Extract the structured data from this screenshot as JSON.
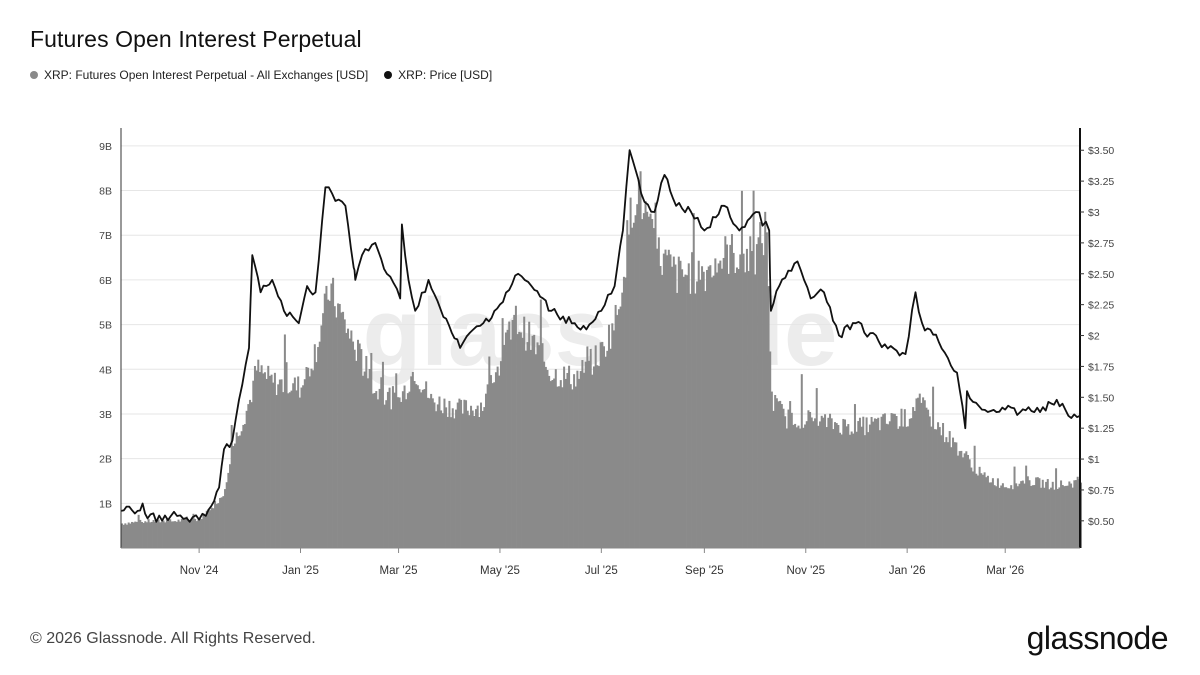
{
  "title": "Futures Open Interest Perpetual",
  "legend": [
    {
      "label": "XRP: Futures Open Interest Perpetual - All Exchanges [USD]",
      "color": "#8a8a8a"
    },
    {
      "label": "XRP: Price [USD]",
      "color": "#111111"
    }
  ],
  "footer": {
    "copyright": "© 2026 Glassnode. All Rights Reserved.",
    "brand": "glassnode"
  },
  "watermark": "glassnode",
  "chart_data": {
    "type": "area",
    "title": "Futures Open Interest Perpetual",
    "x_range": [
      "2024-09-15",
      "2026-04-15"
    ],
    "x_tick_labels": [
      "Nov '24",
      "Jan '25",
      "Mar '25",
      "May '25",
      "Jul '25",
      "Sep '25",
      "Nov '25",
      "Jan '26",
      "Mar '26"
    ],
    "x_tick_dates": [
      "2024-11-01",
      "2025-01-01",
      "2025-03-01",
      "2025-05-01",
      "2025-07-01",
      "2025-09-01",
      "2025-11-01",
      "2026-01-01",
      "2026-03-01"
    ],
    "left_axis": {
      "tick_labels": [
        "1B",
        "2B",
        "3B",
        "4B",
        "5B",
        "6B",
        "7B",
        "8B",
        "9B"
      ],
      "tick_values": [
        1,
        2,
        3,
        4,
        5,
        6,
        7,
        8,
        9
      ],
      "range": [
        0,
        9.4
      ],
      "unit": "B USD"
    },
    "right_axis": {
      "tick_labels": [
        "$0.50",
        "$0.75",
        "$1",
        "$1.25",
        "$1.50",
        "$1.75",
        "$2",
        "$2.25",
        "$2.50",
        "$2.75",
        "$3",
        "$3.25",
        "$3.50"
      ],
      "tick_values": [
        0.5,
        0.75,
        1,
        1.25,
        1.5,
        1.75,
        2,
        2.25,
        2.5,
        2.75,
        3,
        3.25,
        3.5
      ],
      "range": [
        0.28,
        3.68
      ]
    },
    "grid": true,
    "legend_position": "top-left",
    "series": [
      {
        "name": "XRP: Futures Open Interest Perpetual - All Exchanges [USD]",
        "kind": "bars",
        "color": "#8a8a8a",
        "x": [
          "2024-09-15",
          "2024-10-01",
          "2024-10-15",
          "2024-11-01",
          "2024-11-15",
          "2024-11-20",
          "2024-12-01",
          "2024-12-05",
          "2024-12-15",
          "2025-01-01",
          "2025-01-10",
          "2025-01-18",
          "2025-02-01",
          "2025-02-15",
          "2025-03-01",
          "2025-03-10",
          "2025-03-20",
          "2025-04-07",
          "2025-04-20",
          "2025-05-01",
          "2025-05-10",
          "2025-05-20",
          "2025-06-01",
          "2025-06-15",
          "2025-07-01",
          "2025-07-10",
          "2025-07-18",
          "2025-07-22",
          "2025-08-01",
          "2025-08-15",
          "2025-09-01",
          "2025-09-15",
          "2025-10-01",
          "2025-10-08",
          "2025-10-11",
          "2025-10-20",
          "2025-11-01",
          "2025-11-15",
          "2025-12-01",
          "2025-12-15",
          "2026-01-01",
          "2026-01-06",
          "2026-01-20",
          "2026-02-01",
          "2026-02-15",
          "2026-03-01",
          "2026-03-15",
          "2026-04-01",
          "2026-04-15"
        ],
        "values": [
          0.55,
          0.6,
          0.6,
          0.65,
          1.2,
          2.2,
          3.3,
          4.0,
          3.7,
          3.6,
          4.5,
          5.8,
          4.6,
          3.5,
          3.3,
          4.0,
          3.3,
          3.1,
          3.2,
          4.2,
          5.1,
          4.6,
          3.9,
          3.8,
          4.4,
          5.2,
          7.4,
          8.2,
          6.7,
          6.1,
          6.2,
          6.6,
          6.5,
          7.2,
          3.3,
          2.9,
          2.9,
          2.8,
          2.7,
          2.8,
          2.9,
          3.3,
          2.7,
          2.2,
          1.6,
          1.4,
          1.5,
          1.4,
          1.5
        ]
      },
      {
        "name": "XRP: Price [USD]",
        "kind": "line",
        "color": "#111111",
        "x": [
          "2024-09-15",
          "2024-09-25",
          "2024-09-28",
          "2024-10-01",
          "2024-10-15",
          "2024-11-01",
          "2024-11-05",
          "2024-11-10",
          "2024-11-13",
          "2024-11-16",
          "2024-11-21",
          "2024-11-25",
          "2024-12-01",
          "2024-12-03",
          "2024-12-08",
          "2024-12-15",
          "2024-12-22",
          "2024-12-31",
          "2025-01-05",
          "2025-01-10",
          "2025-01-16",
          "2025-01-20",
          "2025-01-28",
          "2025-02-02",
          "2025-02-03",
          "2025-02-07",
          "2025-02-15",
          "2025-02-22",
          "2025-03-02",
          "2025-03-03",
          "2025-03-07",
          "2025-03-11",
          "2025-03-19",
          "2025-03-28",
          "2025-04-07",
          "2025-04-15",
          "2025-04-21",
          "2025-05-01",
          "2025-05-12",
          "2025-05-20",
          "2025-06-01",
          "2025-06-15",
          "2025-06-22",
          "2025-07-01",
          "2025-07-09",
          "2025-07-14",
          "2025-07-18",
          "2025-07-25",
          "2025-08-02",
          "2025-08-08",
          "2025-08-15",
          "2025-08-24",
          "2025-09-01",
          "2025-09-13",
          "2025-09-22",
          "2025-10-02",
          "2025-10-10",
          "2025-10-11",
          "2025-10-16",
          "2025-10-27",
          "2025-11-04",
          "2025-11-12",
          "2025-11-21",
          "2025-12-01",
          "2025-12-15",
          "2025-12-31",
          "2026-01-06",
          "2026-01-10",
          "2026-01-20",
          "2026-01-31",
          "2026-02-05",
          "2026-02-06",
          "2026-02-15",
          "2026-03-01",
          "2026-03-10",
          "2026-03-15",
          "2026-03-22",
          "2026-04-01",
          "2026-04-08",
          "2026-04-15"
        ],
        "values": [
          0.58,
          0.58,
          0.64,
          0.52,
          0.54,
          0.51,
          0.54,
          0.66,
          0.77,
          1.08,
          1.15,
          1.48,
          1.9,
          2.65,
          2.35,
          2.45,
          2.2,
          2.1,
          2.4,
          2.35,
          3.2,
          3.15,
          3.05,
          2.55,
          2.45,
          2.65,
          2.75,
          2.5,
          2.3,
          2.9,
          2.45,
          2.2,
          2.45,
          2.15,
          1.9,
          2.05,
          2.1,
          2.25,
          2.5,
          2.4,
          2.2,
          2.1,
          2.05,
          2.2,
          2.4,
          2.85,
          3.5,
          3.15,
          3.0,
          3.3,
          3.05,
          3.0,
          2.85,
          3.05,
          2.85,
          3.0,
          2.85,
          2.2,
          2.4,
          2.6,
          2.3,
          2.35,
          2.0,
          2.1,
          1.95,
          1.85,
          2.35,
          2.1,
          1.95,
          1.7,
          1.25,
          1.55,
          1.4,
          1.4,
          1.38,
          1.42,
          1.38,
          1.48,
          1.35,
          1.35
        ]
      }
    ]
  }
}
